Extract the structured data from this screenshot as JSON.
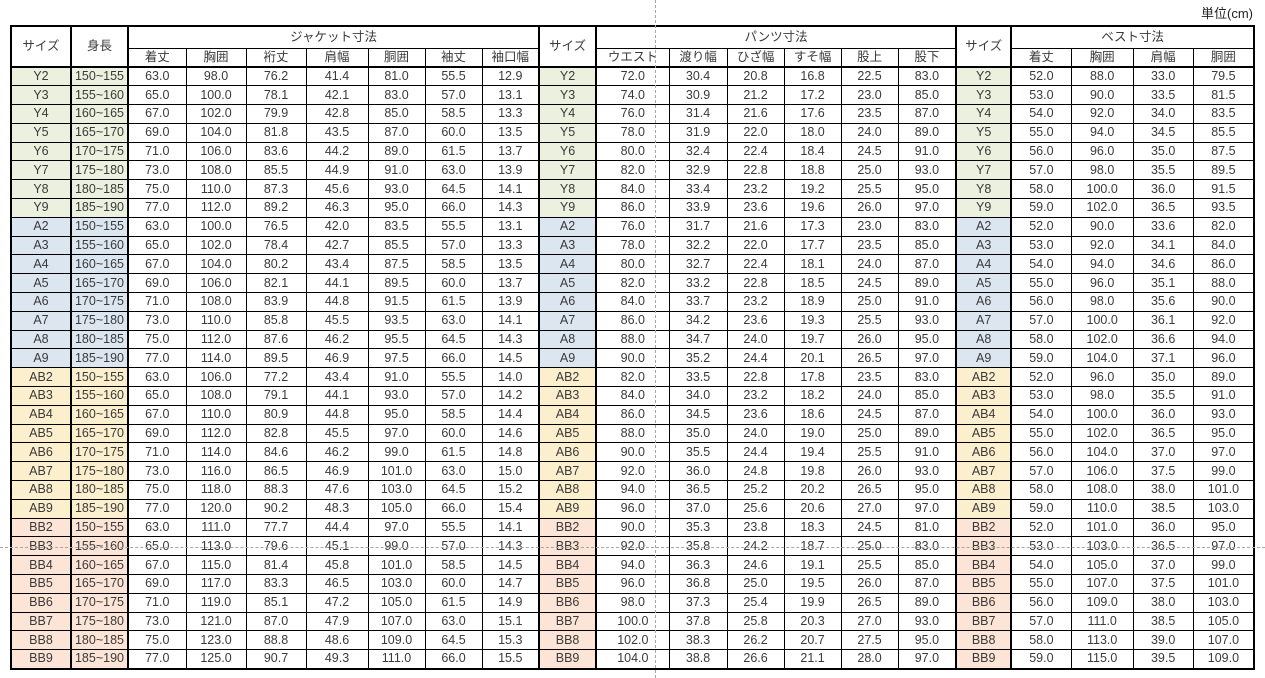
{
  "unit_label": "単位(cm)",
  "table": {
    "sections": [
      {
        "id": "jacket",
        "size_header": "サイズ",
        "height_header": "身長",
        "group_header": "ジャケット寸法",
        "columns": [
          "着丈",
          "胸囲",
          "裄丈",
          "肩幅",
          "胴囲",
          "袖丈",
          "袖口幅"
        ]
      },
      {
        "id": "pants",
        "size_header": "サイズ",
        "group_header": "パンツ寸法",
        "columns": [
          "ウエスト",
          "渡り幅",
          "ひざ幅",
          "すそ幅",
          "股上",
          "股下"
        ]
      },
      {
        "id": "vest",
        "size_header": "サイズ",
        "group_header": "ベスト寸法",
        "columns": [
          "着丈",
          "胸囲",
          "肩幅",
          "胴囲"
        ]
      }
    ],
    "row_groups": [
      {
        "name": "Y",
        "color": "#EBF1DE",
        "rows": [
          {
            "size": "Y2",
            "height": "150~155",
            "jacket": [
              "63.0",
              "98.0",
              "76.2",
              "41.4",
              "81.0",
              "55.5",
              "12.9"
            ],
            "pants": [
              "72.0",
              "30.4",
              "20.8",
              "16.8",
              "22.5",
              "83.0"
            ],
            "vest": [
              "52.0",
              "88.0",
              "33.0",
              "79.5"
            ]
          },
          {
            "size": "Y3",
            "height": "155~160",
            "jacket": [
              "65.0",
              "100.0",
              "78.1",
              "42.1",
              "83.0",
              "57.0",
              "13.1"
            ],
            "pants": [
              "74.0",
              "30.9",
              "21.2",
              "17.2",
              "23.0",
              "85.0"
            ],
            "vest": [
              "53.0",
              "90.0",
              "33.5",
              "81.5"
            ]
          },
          {
            "size": "Y4",
            "height": "160~165",
            "jacket": [
              "67.0",
              "102.0",
              "79.9",
              "42.8",
              "85.0",
              "58.5",
              "13.3"
            ],
            "pants": [
              "76.0",
              "31.4",
              "21.6",
              "17.6",
              "23.5",
              "87.0"
            ],
            "vest": [
              "54.0",
              "92.0",
              "34.0",
              "83.5"
            ]
          },
          {
            "size": "Y5",
            "height": "165~170",
            "jacket": [
              "69.0",
              "104.0",
              "81.8",
              "43.5",
              "87.0",
              "60.0",
              "13.5"
            ],
            "pants": [
              "78.0",
              "31.9",
              "22.0",
              "18.0",
              "24.0",
              "89.0"
            ],
            "vest": [
              "55.0",
              "94.0",
              "34.5",
              "85.5"
            ]
          },
          {
            "size": "Y6",
            "height": "170~175",
            "jacket": [
              "71.0",
              "106.0",
              "83.6",
              "44.2",
              "89.0",
              "61.5",
              "13.7"
            ],
            "pants": [
              "80.0",
              "32.4",
              "22.4",
              "18.4",
              "24.5",
              "91.0"
            ],
            "vest": [
              "56.0",
              "96.0",
              "35.0",
              "87.5"
            ]
          },
          {
            "size": "Y7",
            "height": "175~180",
            "jacket": [
              "73.0",
              "108.0",
              "85.5",
              "44.9",
              "91.0",
              "63.0",
              "13.9"
            ],
            "pants": [
              "82.0",
              "32.9",
              "22.8",
              "18.8",
              "25.0",
              "93.0"
            ],
            "vest": [
              "57.0",
              "98.0",
              "35.5",
              "89.5"
            ]
          },
          {
            "size": "Y8",
            "height": "180~185",
            "jacket": [
              "75.0",
              "110.0",
              "87.3",
              "45.6",
              "93.0",
              "64.5",
              "14.1"
            ],
            "pants": [
              "84.0",
              "33.4",
              "23.2",
              "19.2",
              "25.5",
              "95.0"
            ],
            "vest": [
              "58.0",
              "100.0",
              "36.0",
              "91.5"
            ]
          },
          {
            "size": "Y9",
            "height": "185~190",
            "jacket": [
              "77.0",
              "112.0",
              "89.2",
              "46.3",
              "95.0",
              "66.0",
              "14.3"
            ],
            "pants": [
              "86.0",
              "33.9",
              "23.6",
              "19.6",
              "26.0",
              "97.0"
            ],
            "vest": [
              "59.0",
              "102.0",
              "36.5",
              "93.5"
            ]
          }
        ]
      },
      {
        "name": "A",
        "color": "#DCE6F1",
        "rows": [
          {
            "size": "A2",
            "height": "150~155",
            "jacket": [
              "63.0",
              "100.0",
              "76.5",
              "42.0",
              "83.5",
              "55.5",
              "13.1"
            ],
            "pants": [
              "76.0",
              "31.7",
              "21.6",
              "17.3",
              "23.0",
              "83.0"
            ],
            "vest": [
              "52.0",
              "90.0",
              "33.6",
              "82.0"
            ]
          },
          {
            "size": "A3",
            "height": "155~160",
            "jacket": [
              "65.0",
              "102.0",
              "78.4",
              "42.7",
              "85.5",
              "57.0",
              "13.3"
            ],
            "pants": [
              "78.0",
              "32.2",
              "22.0",
              "17.7",
              "23.5",
              "85.0"
            ],
            "vest": [
              "53.0",
              "92.0",
              "34.1",
              "84.0"
            ]
          },
          {
            "size": "A4",
            "height": "160~165",
            "jacket": [
              "67.0",
              "104.0",
              "80.2",
              "43.4",
              "87.5",
              "58.5",
              "13.5"
            ],
            "pants": [
              "80.0",
              "32.7",
              "22.4",
              "18.1",
              "24.0",
              "87.0"
            ],
            "vest": [
              "54.0",
              "94.0",
              "34.6",
              "86.0"
            ]
          },
          {
            "size": "A5",
            "height": "165~170",
            "jacket": [
              "69.0",
              "106.0",
              "82.1",
              "44.1",
              "89.5",
              "60.0",
              "13.7"
            ],
            "pants": [
              "82.0",
              "33.2",
              "22.8",
              "18.5",
              "24.5",
              "89.0"
            ],
            "vest": [
              "55.0",
              "96.0",
              "35.1",
              "88.0"
            ]
          },
          {
            "size": "A6",
            "height": "170~175",
            "jacket": [
              "71.0",
              "108.0",
              "83.9",
              "44.8",
              "91.5",
              "61.5",
              "13.9"
            ],
            "pants": [
              "84.0",
              "33.7",
              "23.2",
              "18.9",
              "25.0",
              "91.0"
            ],
            "vest": [
              "56.0",
              "98.0",
              "35.6",
              "90.0"
            ]
          },
          {
            "size": "A7",
            "height": "175~180",
            "jacket": [
              "73.0",
              "110.0",
              "85.8",
              "45.5",
              "93.5",
              "63.0",
              "14.1"
            ],
            "pants": [
              "86.0",
              "34.2",
              "23.6",
              "19.3",
              "25.5",
              "93.0"
            ],
            "vest": [
              "57.0",
              "100.0",
              "36.1",
              "92.0"
            ]
          },
          {
            "size": "A8",
            "height": "180~185",
            "jacket": [
              "75.0",
              "112.0",
              "87.6",
              "46.2",
              "95.5",
              "64.5",
              "14.3"
            ],
            "pants": [
              "88.0",
              "34.7",
              "24.0",
              "19.7",
              "26.0",
              "95.0"
            ],
            "vest": [
              "58.0",
              "102.0",
              "36.6",
              "94.0"
            ]
          },
          {
            "size": "A9",
            "height": "185~190",
            "jacket": [
              "77.0",
              "114.0",
              "89.5",
              "46.9",
              "97.5",
              "66.0",
              "14.5"
            ],
            "pants": [
              "90.0",
              "35.2",
              "24.4",
              "20.1",
              "26.5",
              "97.0"
            ],
            "vest": [
              "59.0",
              "104.0",
              "37.1",
              "96.0"
            ]
          }
        ]
      },
      {
        "name": "AB",
        "color": "#FCEFCE",
        "rows": [
          {
            "size": "AB2",
            "height": "150~155",
            "jacket": [
              "63.0",
              "106.0",
              "77.2",
              "43.4",
              "91.0",
              "55.5",
              "14.0"
            ],
            "pants": [
              "82.0",
              "33.5",
              "22.8",
              "17.8",
              "23.5",
              "83.0"
            ],
            "vest": [
              "52.0",
              "96.0",
              "35.0",
              "89.0"
            ]
          },
          {
            "size": "AB3",
            "height": "155~160",
            "jacket": [
              "65.0",
              "108.0",
              "79.1",
              "44.1",
              "93.0",
              "57.0",
              "14.2"
            ],
            "pants": [
              "84.0",
              "34.0",
              "23.2",
              "18.2",
              "24.0",
              "85.0"
            ],
            "vest": [
              "53.0",
              "98.0",
              "35.5",
              "91.0"
            ]
          },
          {
            "size": "AB4",
            "height": "160~165",
            "jacket": [
              "67.0",
              "110.0",
              "80.9",
              "44.8",
              "95.0",
              "58.5",
              "14.4"
            ],
            "pants": [
              "86.0",
              "34.5",
              "23.6",
              "18.6",
              "24.5",
              "87.0"
            ],
            "vest": [
              "54.0",
              "100.0",
              "36.0",
              "93.0"
            ]
          },
          {
            "size": "AB5",
            "height": "165~170",
            "jacket": [
              "69.0",
              "112.0",
              "82.8",
              "45.5",
              "97.0",
              "60.0",
              "14.6"
            ],
            "pants": [
              "88.0",
              "35.0",
              "24.0",
              "19.0",
              "25.0",
              "89.0"
            ],
            "vest": [
              "55.0",
              "102.0",
              "36.5",
              "95.0"
            ]
          },
          {
            "size": "AB6",
            "height": "170~175",
            "jacket": [
              "71.0",
              "114.0",
              "84.6",
              "46.2",
              "99.0",
              "61.5",
              "14.8"
            ],
            "pants": [
              "90.0",
              "35.5",
              "24.4",
              "19.4",
              "25.5",
              "91.0"
            ],
            "vest": [
              "56.0",
              "104.0",
              "37.0",
              "97.0"
            ]
          },
          {
            "size": "AB7",
            "height": "175~180",
            "jacket": [
              "73.0",
              "116.0",
              "86.5",
              "46.9",
              "101.0",
              "63.0",
              "15.0"
            ],
            "pants": [
              "92.0",
              "36.0",
              "24.8",
              "19.8",
              "26.0",
              "93.0"
            ],
            "vest": [
              "57.0",
              "106.0",
              "37.5",
              "99.0"
            ]
          },
          {
            "size": "AB8",
            "height": "180~185",
            "jacket": [
              "75.0",
              "118.0",
              "88.3",
              "47.6",
              "103.0",
              "64.5",
              "15.2"
            ],
            "pants": [
              "94.0",
              "36.5",
              "25.2",
              "20.2",
              "26.5",
              "95.0"
            ],
            "vest": [
              "58.0",
              "108.0",
              "38.0",
              "101.0"
            ]
          },
          {
            "size": "AB9",
            "height": "185~190",
            "jacket": [
              "77.0",
              "120.0",
              "90.2",
              "48.3",
              "105.0",
              "66.0",
              "15.4"
            ],
            "pants": [
              "96.0",
              "37.0",
              "25.6",
              "20.6",
              "27.0",
              "97.0"
            ],
            "vest": [
              "59.0",
              "110.0",
              "38.5",
              "103.0"
            ]
          }
        ]
      },
      {
        "name": "BB",
        "color": "#FCE4D6",
        "rows": [
          {
            "size": "BB2",
            "height": "150~155",
            "jacket": [
              "63.0",
              "111.0",
              "77.7",
              "44.4",
              "97.0",
              "55.5",
              "14.1"
            ],
            "pants": [
              "90.0",
              "35.3",
              "23.8",
              "18.3",
              "24.5",
              "81.0"
            ],
            "vest": [
              "52.0",
              "101.0",
              "36.0",
              "95.0"
            ]
          },
          {
            "size": "BB3",
            "height": "155~160",
            "jacket": [
              "65.0",
              "113.0",
              "79.6",
              "45.1",
              "99.0",
              "57.0",
              "14.3"
            ],
            "pants": [
              "92.0",
              "35.8",
              "24.2",
              "18.7",
              "25.0",
              "83.0"
            ],
            "vest": [
              "53.0",
              "103.0",
              "36.5",
              "97.0"
            ]
          },
          {
            "size": "BB4",
            "height": "160~165",
            "jacket": [
              "67.0",
              "115.0",
              "81.4",
              "45.8",
              "101.0",
              "58.5",
              "14.5"
            ],
            "pants": [
              "94.0",
              "36.3",
              "24.6",
              "19.1",
              "25.5",
              "85.0"
            ],
            "vest": [
              "54.0",
              "105.0",
              "37.0",
              "99.0"
            ]
          },
          {
            "size": "BB5",
            "height": "165~170",
            "jacket": [
              "69.0",
              "117.0",
              "83.3",
              "46.5",
              "103.0",
              "60.0",
              "14.7"
            ],
            "pants": [
              "96.0",
              "36.8",
              "25.0",
              "19.5",
              "26.0",
              "87.0"
            ],
            "vest": [
              "55.0",
              "107.0",
              "37.5",
              "101.0"
            ]
          },
          {
            "size": "BB6",
            "height": "170~175",
            "jacket": [
              "71.0",
              "119.0",
              "85.1",
              "47.2",
              "105.0",
              "61.5",
              "14.9"
            ],
            "pants": [
              "98.0",
              "37.3",
              "25.4",
              "19.9",
              "26.5",
              "89.0"
            ],
            "vest": [
              "56.0",
              "109.0",
              "38.0",
              "103.0"
            ]
          },
          {
            "size": "BB7",
            "height": "175~180",
            "jacket": [
              "73.0",
              "121.0",
              "87.0",
              "47.9",
              "107.0",
              "63.0",
              "15.1"
            ],
            "pants": [
              "100.0",
              "37.8",
              "25.8",
              "20.3",
              "27.0",
              "93.0"
            ],
            "vest": [
              "57.0",
              "111.0",
              "38.5",
              "105.0"
            ]
          },
          {
            "size": "BB8",
            "height": "180~185",
            "jacket": [
              "75.0",
              "123.0",
              "88.8",
              "48.6",
              "109.0",
              "64.5",
              "15.3"
            ],
            "pants": [
              "102.0",
              "38.3",
              "26.2",
              "20.7",
              "27.5",
              "95.0"
            ],
            "vest": [
              "58.0",
              "113.0",
              "39.0",
              "107.0"
            ]
          },
          {
            "size": "BB9",
            "height": "185~190",
            "jacket": [
              "77.0",
              "125.0",
              "90.7",
              "49.3",
              "111.0",
              "66.0",
              "15.5"
            ],
            "pants": [
              "104.0",
              "38.8",
              "26.6",
              "21.1",
              "28.0",
              "97.0"
            ],
            "vest": [
              "59.0",
              "115.0",
              "39.5",
              "109.0"
            ]
          }
        ]
      }
    ]
  },
  "page_breaks": {
    "description": "gray dashed print page-break lines",
    "color": "#a6a6a6"
  }
}
